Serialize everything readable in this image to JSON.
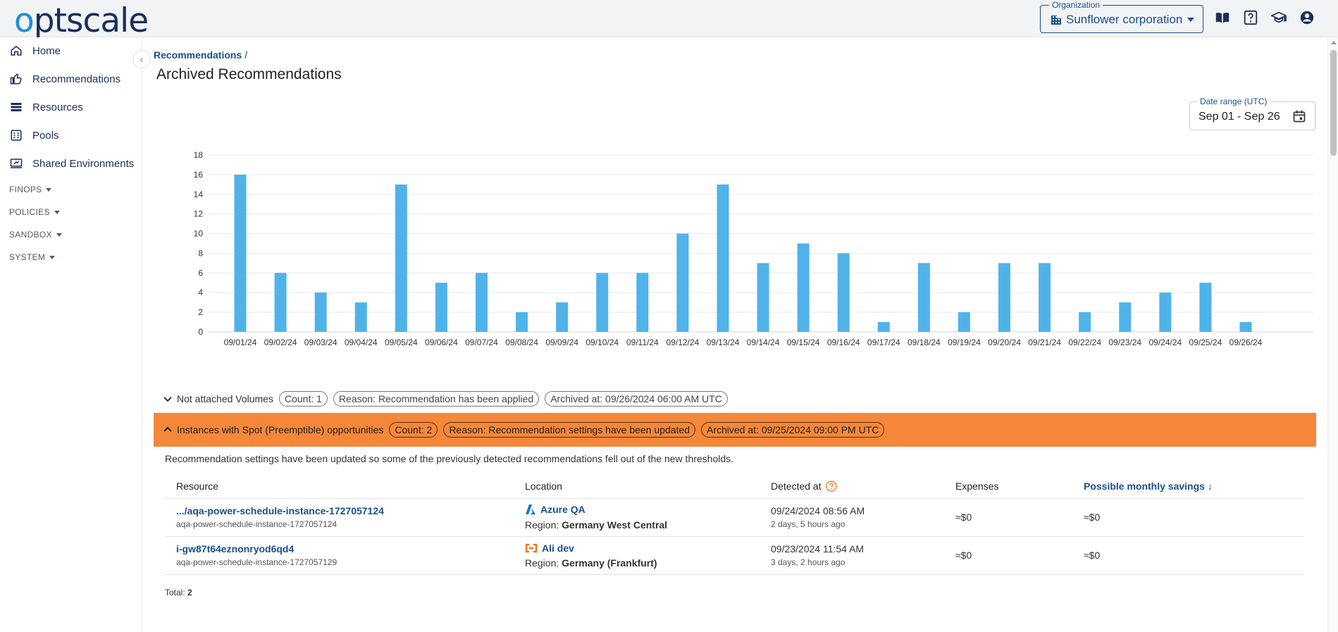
{
  "header": {
    "logo_text_o": "o",
    "logo_text_rest": "ptscale",
    "org_label": "Organization",
    "org_name": "Sunflower corporation",
    "icons": [
      "documentation-icon",
      "help-icon",
      "academy-icon",
      "account-icon"
    ]
  },
  "sidebar": {
    "items": [
      {
        "label": "Home",
        "icon": "home-icon"
      },
      {
        "label": "Recommendations",
        "icon": "thumb-up-icon"
      },
      {
        "label": "Resources",
        "icon": "list-icon"
      },
      {
        "label": "Pools",
        "icon": "pools-icon"
      },
      {
        "label": "Shared Environments",
        "icon": "shared-env-icon"
      }
    ],
    "groups": [
      "FINOPS",
      "POLICIES",
      "SANDBOX",
      "SYSTEM"
    ]
  },
  "breadcrumb": {
    "parent": "Recommendations",
    "separator": "/"
  },
  "page_title": "Archived Recommendations",
  "date_range": {
    "label": "Date range (UTC)",
    "value": "Sep 01 - Sep 26"
  },
  "chart_data": {
    "type": "bar",
    "categories": [
      "09/01/24",
      "09/02/24",
      "09/03/24",
      "09/04/24",
      "09/05/24",
      "09/06/24",
      "09/07/24",
      "09/08/24",
      "09/09/24",
      "09/10/24",
      "09/11/24",
      "09/12/24",
      "09/13/24",
      "09/14/24",
      "09/15/24",
      "09/16/24",
      "09/17/24",
      "09/18/24",
      "09/19/24",
      "09/20/24",
      "09/21/24",
      "09/22/24",
      "09/23/24",
      "09/24/24",
      "09/25/24",
      "09/26/24"
    ],
    "values": [
      16,
      6,
      4,
      3,
      15,
      5,
      6,
      2,
      3,
      6,
      6,
      10,
      15,
      7,
      9,
      8,
      1,
      7,
      2,
      7,
      7,
      2,
      3,
      4,
      5,
      1
    ],
    "yticks": [
      0,
      2,
      4,
      6,
      8,
      10,
      12,
      14,
      16,
      18
    ],
    "ylim": [
      0,
      18
    ],
    "grid": true,
    "color": "#4fb3ea"
  },
  "sections": [
    {
      "title": "Not attached Volumes",
      "count": "Count: 1",
      "reason": "Reason: Recommendation has been applied",
      "archived": "Archived at: 09/26/2024 06:00 AM UTC"
    },
    {
      "title": "Instances with Spot (Preemptible) opportunities",
      "count": "Count: 2",
      "reason": "Reason: Recommendation settings have been updated",
      "archived": "Archived at: 09/25/2024 09:00 PM UTC",
      "description": "Recommendation settings have been updated so some of the previously detected recommendations fell out of the new thresholds.",
      "columns": {
        "resource": "Resource",
        "location": "Location",
        "detected": "Detected at",
        "expenses": "Expenses",
        "savings": "Possible monthly savings"
      },
      "rows": [
        {
          "resource": ".../aqa-power-schedule-instance-1727057124",
          "resource_sub": "aqa-power-schedule-instance-1727057124",
          "location": "Azure QA",
          "region_label": "Region:",
          "region": "Germany West Central",
          "detected": "09/24/2024 08:56 AM",
          "detected_ago": "2 days, 5 hours ago",
          "expenses": "≈$0",
          "savings": "≈$0"
        },
        {
          "resource": "i-gw87t64eznonryod6qd4",
          "resource_sub": "aqa-power-schedule-instance-1727057129",
          "location": "Ali dev",
          "region_label": "Region:",
          "region": "Germany (Frankfurt)",
          "detected": "09/23/2024 11:54 AM",
          "detected_ago": "3 days, 2 hours ago",
          "expenses": "≈$0",
          "savings": "≈$0"
        }
      ],
      "total_label": "Total:",
      "total": "2"
    }
  ],
  "colors": {
    "brand": "#1b4f8c",
    "accent": "#f5873a",
    "bar": "#4fb3ea"
  }
}
